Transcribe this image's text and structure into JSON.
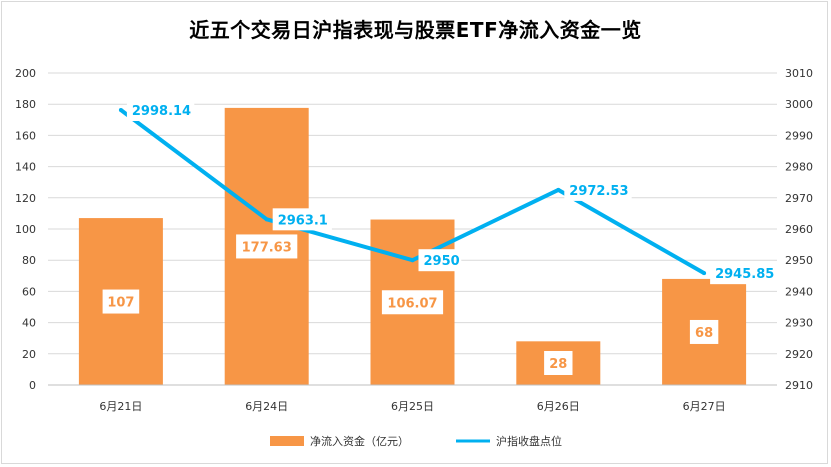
{
  "chart_data": {
    "type": "bar",
    "title": "近五个交易日沪指表现与股票ETF净流入资金一览",
    "categories": [
      "6月21日",
      "6月24日",
      "6月25日",
      "6月26日",
      "6月27日"
    ],
    "series": [
      {
        "name": "净流入资金（亿元）",
        "type": "bar",
        "axis": "left",
        "color": "#f79646",
        "values": [
          107,
          177.63,
          106.07,
          28,
          68
        ],
        "labels": [
          "107",
          "177.63",
          "106.07",
          "28",
          "68"
        ]
      },
      {
        "name": "沪指收盘点位",
        "type": "line",
        "axis": "right",
        "color": "#00b0f0",
        "values": [
          2998.14,
          2963.1,
          2950,
          2972.53,
          2945.85
        ],
        "labels": [
          "2998.14",
          "2963.1",
          "2950",
          "2972.53",
          "2945.85"
        ]
      }
    ],
    "y_left": {
      "min": 0,
      "max": 200,
      "step": 20
    },
    "y_right": {
      "min": 2910,
      "max": 3010,
      "step": 10
    },
    "grid": true,
    "legend_position": "bottom"
  }
}
